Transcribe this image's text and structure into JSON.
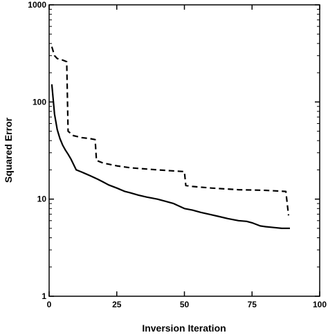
{
  "chart_data": {
    "type": "line",
    "xlabel": "Inversion Iteration",
    "ylabel": "Squared Error",
    "xlim": [
      0,
      100
    ],
    "ylim": [
      1,
      1000
    ],
    "y_scale": "log",
    "grid": false,
    "x_ticks": [
      0,
      25,
      50,
      75,
      100
    ],
    "x_tick_labels": [
      "0",
      "25",
      "50",
      "75",
      "100"
    ],
    "y_ticks": [
      1,
      10,
      100,
      1000
    ],
    "y_tick_labels": [
      "1",
      "10",
      "100",
      "1000"
    ],
    "series": [
      {
        "style": "solid",
        "color": "#000000",
        "x": [
          1,
          2,
          3,
          4,
          5,
          6,
          7,
          8,
          10,
          12,
          15,
          18,
          20,
          22,
          25,
          28,
          30,
          33,
          36,
          40,
          43,
          46,
          50,
          53,
          56,
          60,
          63,
          66,
          70,
          73,
          75,
          78,
          80,
          83,
          86,
          89
        ],
        "y": [
          152,
          75,
          52,
          42,
          36,
          32,
          29,
          26,
          20,
          19,
          17.5,
          16,
          15,
          14,
          13,
          12,
          11.6,
          11,
          10.5,
          10,
          9.5,
          9,
          8,
          7.7,
          7.3,
          6.9,
          6.6,
          6.3,
          6,
          5.9,
          5.7,
          5.3,
          5.2,
          5.1,
          5,
          5
        ]
      },
      {
        "style": "dashed",
        "color": "#000000",
        "x": [
          1,
          2,
          3,
          5,
          6.5,
          7,
          9,
          12,
          15,
          17,
          17.5,
          20,
          25,
          30,
          35,
          40,
          45,
          50,
          50.5,
          53,
          60,
          70,
          80,
          87.5,
          88.5
        ],
        "y": [
          370,
          300,
          280,
          270,
          260,
          50,
          45,
          43,
          42,
          41,
          25,
          23.5,
          22,
          21,
          20.5,
          20,
          19.6,
          19.2,
          13.8,
          13.5,
          13,
          12.5,
          12.3,
          12,
          6.8
        ]
      }
    ]
  }
}
